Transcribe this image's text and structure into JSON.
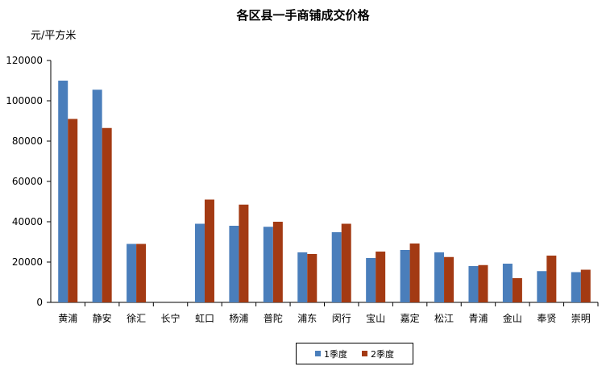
{
  "chart_data": {
    "type": "bar",
    "title": "各区县一手商铺成交价格",
    "unit_label": "元/平方米",
    "categories": [
      "黄浦",
      "静安",
      "徐汇",
      "长宁",
      "虹口",
      "杨浦",
      "普陀",
      "浦东",
      "闵行",
      "宝山",
      "嘉定",
      "松江",
      "青浦",
      "金山",
      "奉贤",
      "崇明"
    ],
    "series": [
      {
        "name": "1季度",
        "color": "#4a7ebb",
        "values": [
          110000,
          105500,
          29000,
          0,
          39000,
          38000,
          37500,
          24800,
          34800,
          22000,
          26000,
          24800,
          18000,
          19200,
          15500,
          15000
        ]
      },
      {
        "name": "2季度",
        "color": "#a33a13",
        "values": [
          91000,
          86500,
          29000,
          0,
          51000,
          48500,
          40000,
          24000,
          39000,
          25200,
          29200,
          22500,
          18500,
          12000,
          23200,
          16200
        ]
      }
    ],
    "ylim": [
      0,
      120000
    ],
    "yticks": [
      0,
      20000,
      40000,
      60000,
      80000,
      100000,
      120000
    ],
    "grid": false,
    "legend_position": "bottom"
  }
}
